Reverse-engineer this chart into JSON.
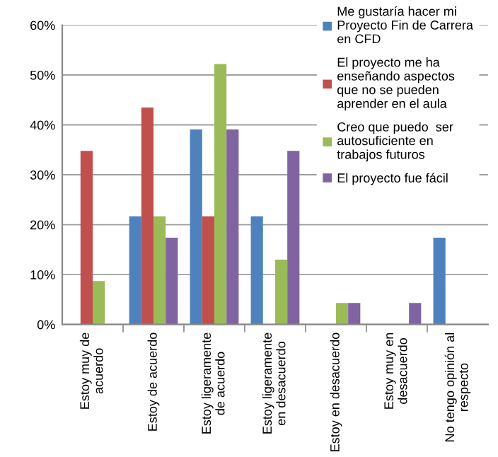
{
  "chart_data": {
    "type": "bar",
    "categories": [
      "Estoy muy de\nacuerdo",
      "Estoy de acuerdo",
      "Estoy ligeramente\nde acuerdo",
      "Estoy ligeramente\nen desacuerdo",
      "Estoy en desacuerdo",
      "Estoy muy en\ndesacuerdo",
      "No tengo opinión al\nrespecto"
    ],
    "series": [
      {
        "name": "Me gustaría hacer mi\nProyecto Fin de Carrera\nen CFD",
        "color": "#4f81bd",
        "values": [
          0,
          21.7,
          39.1,
          21.7,
          0,
          0,
          17.4
        ]
      },
      {
        "name": "El proyecto me ha\nenseñando aspectos\nque no se pueden\naprender en el aula",
        "color": "#c0504d",
        "values": [
          34.8,
          43.5,
          21.7,
          0,
          0,
          0,
          0
        ]
      },
      {
        "name": "Creo que puedo  ser\nautosuficiente en\ntrabajos futuros",
        "color": "#9bbb59",
        "values": [
          8.7,
          21.7,
          52.2,
          13.0,
          4.3,
          0,
          0
        ]
      },
      {
        "name": "El proyecto fue fácil",
        "color": "#8064a2",
        "values": [
          0,
          17.4,
          39.1,
          34.8,
          4.3,
          4.3,
          0
        ]
      }
    ],
    "ylim": [
      0,
      60
    ],
    "yticks": [
      {
        "value": 0,
        "label": "0%"
      },
      {
        "value": 10,
        "label": "10%"
      },
      {
        "value": 20,
        "label": "20%"
      },
      {
        "value": 30,
        "label": "30%"
      },
      {
        "value": 40,
        "label": "40%"
      },
      {
        "value": 50,
        "label": "50%"
      },
      {
        "value": 60,
        "label": "60%"
      }
    ],
    "grid": "y",
    "legend": "top right"
  }
}
